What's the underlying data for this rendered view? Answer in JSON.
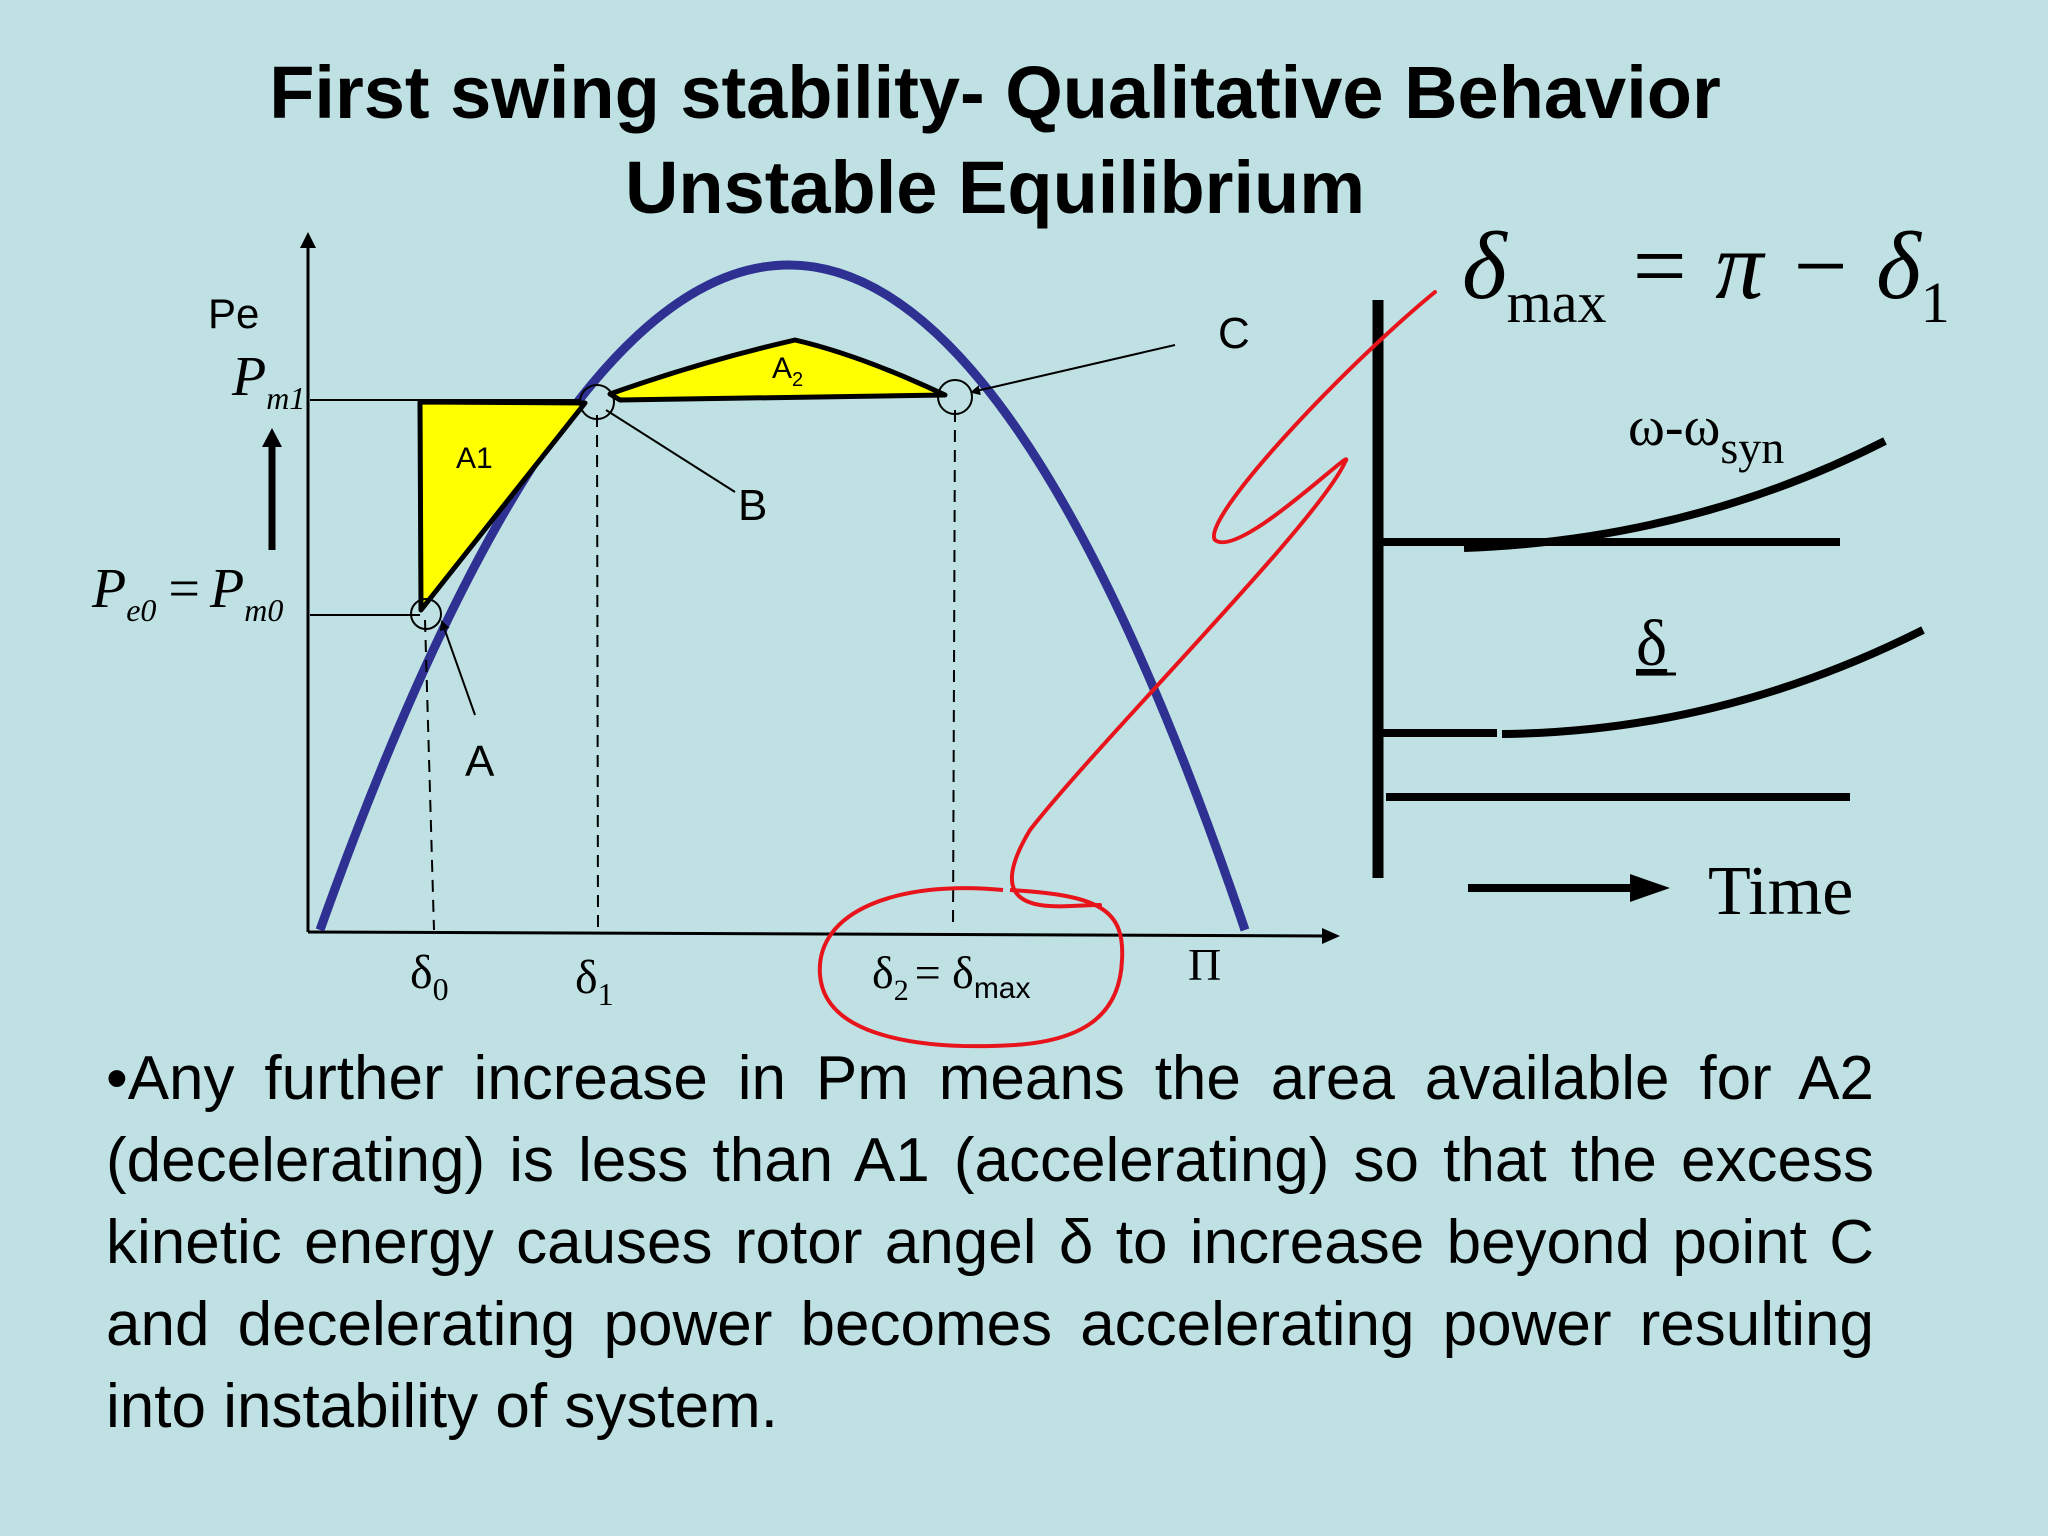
{
  "title": {
    "line1": "First swing stability- Qualitative Behavior",
    "line2": "Unstable Equilibrium"
  },
  "diagram": {
    "y_axis_label": "Pe",
    "pm1_label": {
      "main": "P",
      "sub": "m1"
    },
    "pe0_label": {
      "left_main": "P",
      "left_sub": "e0",
      "eq": "=",
      "right_main": "P",
      "right_sub": "m0"
    },
    "area_a1": "A1",
    "area_a2": {
      "main": "A",
      "sub": "2"
    },
    "point_a": "A",
    "point_b": "B",
    "point_c": "C",
    "x_ticks": {
      "delta0": {
        "main": "δ",
        "sub": "0"
      },
      "delta1": {
        "main": "δ",
        "sub": "1"
      },
      "delta2": {
        "main": "δ",
        "sub": "2",
        "eq": "= δ",
        "sub2": "max"
      },
      "pi": "Π"
    },
    "formula": {
      "delta": "δ",
      "sub": "max",
      "rest": "= π − δ",
      "sub1": "1"
    },
    "omega_label": {
      "main": "ω-ω",
      "sub": "syn"
    },
    "delta_label": "δ",
    "time_label": "Time",
    "colors": {
      "curve": "#2e3192",
      "area_fill": "#ffff00",
      "annotation": "#e8141c",
      "background": "#bfe1e3"
    }
  },
  "body": "•Any further increase in Pm means the area available for A2 (decelerating) is less than A1 (accelerating) so that the excess kinetic energy causes rotor angel δ to increase beyond  point C and decelerating power becomes accelerating power resulting into instability of system."
}
